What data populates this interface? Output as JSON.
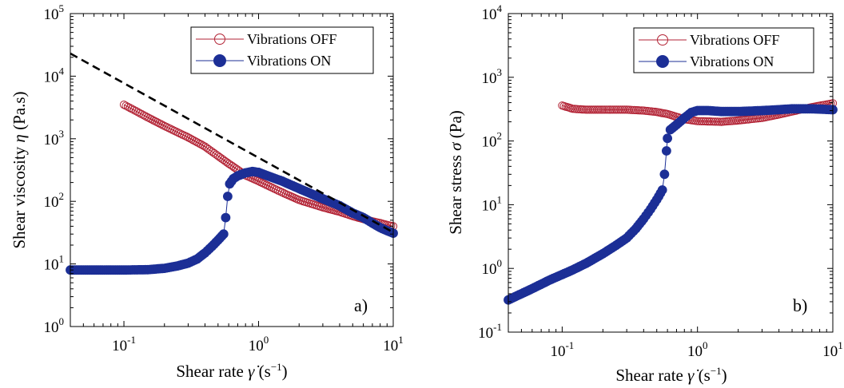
{
  "chart_data": [
    {
      "type": "scatter",
      "panel_label": "a)",
      "xlabel": "Shear rate γ̇ (s⁻¹)",
      "ylabel": "Shear viscosity η (Pa.s)",
      "xscale": "log",
      "yscale": "log",
      "xlim": [
        0.04,
        10
      ],
      "ylim": [
        1,
        100000
      ],
      "x_ticks": [
        {
          "base": "10",
          "exp": "-1",
          "value": 0.1
        },
        {
          "base": "10",
          "exp": "0",
          "value": 1
        },
        {
          "base": "10",
          "exp": "1",
          "value": 10
        }
      ],
      "y_ticks": [
        {
          "base": "10",
          "exp": "0",
          "value": 1
        },
        {
          "base": "10",
          "exp": "1",
          "value": 10
        },
        {
          "base": "10",
          "exp": "2",
          "value": 100
        },
        {
          "base": "10",
          "exp": "3",
          "value": 1000
        },
        {
          "base": "10",
          "exp": "4",
          "value": 10000
        },
        {
          "base": "10",
          "exp": "5",
          "value": 100000
        }
      ],
      "legend_position": "top-right",
      "grid": false,
      "series": [
        {
          "name": "Vibrations OFF",
          "marker": "open-circle",
          "color": "#b22234",
          "points": [
            [
              0.1,
              3500
            ],
            [
              0.15,
              2200
            ],
            [
              0.2,
              1600
            ],
            [
              0.3,
              1050
            ],
            [
              0.4,
              750
            ],
            [
              0.5,
              530
            ],
            [
              0.6,
              400
            ],
            [
              0.7,
              320
            ],
            [
              0.8,
              260
            ],
            [
              1.0,
              210
            ],
            [
              1.3,
              160
            ],
            [
              1.6,
              130
            ],
            [
              2.0,
              105
            ],
            [
              3.0,
              80
            ],
            [
              4.0,
              68
            ],
            [
              5.0,
              58
            ],
            [
              6.0,
              52
            ],
            [
              7.0,
              48
            ],
            [
              8.0,
              45
            ],
            [
              9.0,
              42
            ],
            [
              10.0,
              40
            ]
          ]
        },
        {
          "name": "Vibrations ON",
          "marker": "filled-circle",
          "color": "#1c2f96",
          "points": [
            [
              0.04,
              8
            ],
            [
              0.06,
              8
            ],
            [
              0.08,
              8
            ],
            [
              0.1,
              8
            ],
            [
              0.15,
              8.1
            ],
            [
              0.2,
              8.5
            ],
            [
              0.25,
              9.3
            ],
            [
              0.3,
              10.3
            ],
            [
              0.35,
              12
            ],
            [
              0.4,
              15
            ],
            [
              0.45,
              19
            ],
            [
              0.5,
              24
            ],
            [
              0.55,
              30
            ],
            [
              0.57,
              55
            ],
            [
              0.59,
              120
            ],
            [
              0.61,
              190
            ],
            [
              0.65,
              230
            ],
            [
              0.7,
              255
            ],
            [
              0.8,
              285
            ],
            [
              0.9,
              300
            ],
            [
              1.0,
              290
            ],
            [
              1.2,
              250
            ],
            [
              1.5,
              210
            ],
            [
              2.0,
              160
            ],
            [
              3.0,
              110
            ],
            [
              4.0,
              85
            ],
            [
              5.0,
              65
            ],
            [
              6.0,
              55
            ],
            [
              7.0,
              45
            ],
            [
              8.0,
              38
            ],
            [
              9.0,
              34
            ],
            [
              10.0,
              31
            ]
          ]
        },
        {
          "name": "",
          "type": "line",
          "style": "dashed",
          "color": "#000000",
          "points": [
            [
              0.04,
              23000
            ],
            [
              10.0,
              32
            ]
          ]
        }
      ]
    },
    {
      "type": "scatter",
      "panel_label": "b)",
      "xlabel": "Shear rate γ̇ (s⁻¹)",
      "ylabel": "Shear stress σ (Pa)",
      "xscale": "log",
      "yscale": "log",
      "xlim": [
        0.04,
        10
      ],
      "ylim": [
        0.1,
        10000
      ],
      "x_ticks": [
        {
          "base": "10",
          "exp": "-1",
          "value": 0.1
        },
        {
          "base": "10",
          "exp": "0",
          "value": 1
        },
        {
          "base": "10",
          "exp": "1",
          "value": 10
        }
      ],
      "y_ticks": [
        {
          "base": "10",
          "exp": "-1",
          "value": 0.1
        },
        {
          "base": "10",
          "exp": "0",
          "value": 1
        },
        {
          "base": "10",
          "exp": "1",
          "value": 10
        },
        {
          "base": "10",
          "exp": "2",
          "value": 100
        },
        {
          "base": "10",
          "exp": "3",
          "value": 1000
        },
        {
          "base": "10",
          "exp": "4",
          "value": 10000
        }
      ],
      "legend_position": "top-right",
      "grid": false,
      "series": [
        {
          "name": "Vibrations OFF",
          "marker": "open-circle",
          "color": "#b22234",
          "points": [
            [
              0.1,
              360
            ],
            [
              0.12,
              320
            ],
            [
              0.15,
              310
            ],
            [
              0.2,
              310
            ],
            [
              0.3,
              310
            ],
            [
              0.4,
              300
            ],
            [
              0.5,
              285
            ],
            [
              0.6,
              265
            ],
            [
              0.7,
              240
            ],
            [
              0.8,
              220
            ],
            [
              1.0,
              205
            ],
            [
              1.5,
              200
            ],
            [
              2.0,
              210
            ],
            [
              3.0,
              230
            ],
            [
              4.0,
              260
            ],
            [
              5.0,
              290
            ],
            [
              7.0,
              340
            ],
            [
              10.0,
              390
            ]
          ]
        },
        {
          "name": "Vibrations ON",
          "marker": "filled-circle",
          "color": "#1c2f96",
          "points": [
            [
              0.04,
              0.32
            ],
            [
              0.05,
              0.4
            ],
            [
              0.06,
              0.48
            ],
            [
              0.08,
              0.65
            ],
            [
              0.1,
              0.8
            ],
            [
              0.12,
              0.95
            ],
            [
              0.15,
              1.2
            ],
            [
              0.2,
              1.7
            ],
            [
              0.25,
              2.3
            ],
            [
              0.3,
              3.0
            ],
            [
              0.35,
              4.2
            ],
            [
              0.4,
              6.0
            ],
            [
              0.45,
              8.5
            ],
            [
              0.5,
              12
            ],
            [
              0.55,
              17
            ],
            [
              0.57,
              30
            ],
            [
              0.59,
              70
            ],
            [
              0.6,
              110
            ],
            [
              0.63,
              150
            ],
            [
              0.7,
              180
            ],
            [
              0.8,
              230
            ],
            [
              0.9,
              280
            ],
            [
              1.0,
              300
            ],
            [
              1.2,
              300
            ],
            [
              1.5,
              290
            ],
            [
              2.0,
              290
            ],
            [
              3.0,
              300
            ],
            [
              4.0,
              310
            ],
            [
              5.0,
              320
            ],
            [
              7.0,
              320
            ],
            [
              10.0,
              310
            ]
          ]
        }
      ]
    }
  ]
}
